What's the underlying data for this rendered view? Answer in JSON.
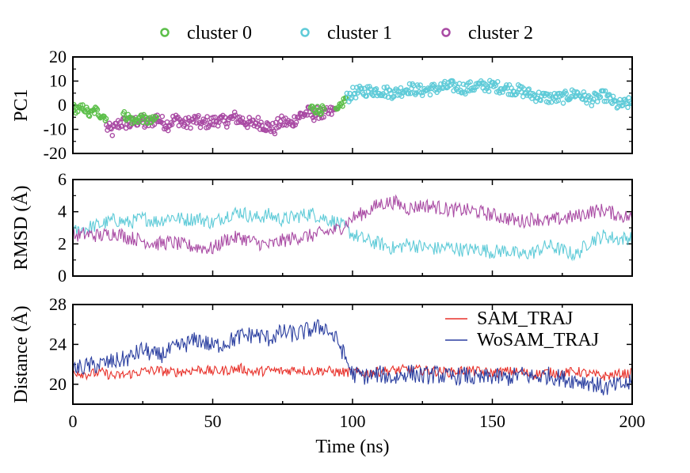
{
  "chart_data": [
    {
      "type": "scatter",
      "panel": "top",
      "ylabel": "PC1",
      "xlim": [
        0,
        200
      ],
      "ylim": [
        -20,
        20
      ],
      "yticks": [
        "20",
        "10",
        "0",
        "-10",
        "-20"
      ],
      "legend": {
        "placement": "top",
        "entries": [
          "cluster 0",
          "cluster 1",
          "cluster 2"
        ]
      },
      "series": [
        {
          "name": "cluster 0",
          "color": "#5cbf4a",
          "segments": [
            {
              "x": [
                0,
                2,
                4,
                6,
                8,
                10,
                12
              ],
              "y": [
                -1,
                -2,
                -1,
                -4,
                -2,
                -4,
                -5
              ]
            },
            {
              "x": [
                18,
                20,
                22,
                24,
                26,
                28,
                30
              ],
              "y": [
                -4,
                -5,
                -7,
                -5,
                -6,
                -7,
                -5
              ]
            },
            {
              "x": [
                85,
                88,
                90
              ],
              "y": [
                -1,
                -2,
                -2
              ]
            },
            {
              "x": [
                94,
                95,
                96,
                97,
                98
              ],
              "y": [
                -3,
                -2,
                0,
                2,
                3
              ]
            }
          ]
        },
        {
          "name": "cluster 1",
          "color": "#5fcbd8",
          "x": [
            98,
            100,
            105,
            110,
            115,
            120,
            125,
            130,
            135,
            140,
            145,
            150,
            155,
            160,
            165,
            170,
            175,
            180,
            185,
            190,
            195,
            200
          ],
          "y": [
            3,
            5,
            6,
            6,
            5,
            7,
            6,
            7,
            8,
            7,
            8,
            8,
            7,
            6,
            4,
            3,
            3,
            5,
            2,
            4,
            0,
            1
          ]
        },
        {
          "name": "cluster 2",
          "color": "#a94ba4",
          "x": [
            12,
            14,
            16,
            18,
            20,
            22,
            24,
            26,
            28,
            30,
            32,
            34,
            36,
            38,
            40,
            42,
            44,
            46,
            48,
            50,
            52,
            54,
            56,
            58,
            60,
            62,
            64,
            66,
            68,
            70,
            72,
            74,
            76,
            78,
            80,
            82,
            84,
            86,
            88,
            90,
            92,
            94
          ],
          "y": [
            -9,
            -11,
            -8,
            -7,
            -8,
            -7,
            -6,
            -8,
            -7,
            -5,
            -7,
            -8,
            -6,
            -6,
            -8,
            -7,
            -6,
            -8,
            -7,
            -7,
            -6,
            -7,
            -6,
            -5,
            -6,
            -7,
            -8,
            -7,
            -8,
            -9,
            -10,
            -7,
            -7,
            -8,
            -5,
            -4,
            -3,
            -4,
            -3,
            -4,
            -3,
            -2
          ]
        }
      ]
    },
    {
      "type": "line",
      "panel": "middle",
      "ylabel": "RMSD (Å)",
      "xlim": [
        0,
        200
      ],
      "ylim": [
        0,
        6
      ],
      "yticks": [
        "6",
        "4",
        "2",
        "0"
      ],
      "series": [
        {
          "color": "#5fcbd8",
          "x": [
            0,
            5,
            10,
            15,
            20,
            25,
            30,
            35,
            40,
            45,
            50,
            55,
            60,
            65,
            70,
            75,
            80,
            85,
            90,
            95,
            100,
            105,
            110,
            115,
            120,
            125,
            130,
            135,
            140,
            145,
            150,
            155,
            160,
            165,
            170,
            175,
            180,
            185,
            190,
            195,
            200
          ],
          "y": [
            2.7,
            3.0,
            3.2,
            3.5,
            3.3,
            3.6,
            3.4,
            3.7,
            3.5,
            3.6,
            3.3,
            3.8,
            4.0,
            3.6,
            3.8,
            3.5,
            3.7,
            3.9,
            3.6,
            3.3,
            2.6,
            2.2,
            2.0,
            1.7,
            2.0,
            1.8,
            1.7,
            1.8,
            1.6,
            1.7,
            1.5,
            1.6,
            1.3,
            1.5,
            1.9,
            1.6,
            1.3,
            2.2,
            2.5,
            2.3,
            2.4
          ]
        },
        {
          "color": "#a94ba4",
          "x": [
            0,
            5,
            10,
            15,
            20,
            25,
            30,
            35,
            40,
            45,
            50,
            55,
            60,
            65,
            70,
            75,
            80,
            85,
            90,
            95,
            100,
            105,
            110,
            115,
            120,
            125,
            130,
            135,
            140,
            145,
            150,
            155,
            160,
            165,
            170,
            175,
            180,
            185,
            190,
            195,
            200
          ],
          "y": [
            2.5,
            2.6,
            2.5,
            2.7,
            2.4,
            2.2,
            2.0,
            2.1,
            1.9,
            1.8,
            1.7,
            2.3,
            2.4,
            2.1,
            1.9,
            2.2,
            2.4,
            2.5,
            2.7,
            2.9,
            3.6,
            4.0,
            4.5,
            4.6,
            4.2,
            4.4,
            4.3,
            4.1,
            4.1,
            4.0,
            3.8,
            3.6,
            3.4,
            3.6,
            3.4,
            3.6,
            3.7,
            4.0,
            4.1,
            3.8,
            3.6
          ]
        }
      ]
    },
    {
      "type": "line",
      "panel": "bottom",
      "xlabel": "Time (ns)",
      "ylabel": "Distance (Å)",
      "xlim": [
        0,
        200
      ],
      "ylim": [
        18,
        28
      ],
      "xticks": [
        "0",
        "50",
        "100",
        "150",
        "200"
      ],
      "yticks": [
        "28",
        "24",
        "20"
      ],
      "legend": {
        "placement": "top-right",
        "entries": [
          "SAM_TRAJ",
          "WoSAM_TRAJ"
        ]
      },
      "series": [
        {
          "name": "SAM_TRAJ",
          "color": "#e8312a",
          "x": [
            0,
            5,
            10,
            15,
            20,
            25,
            30,
            35,
            40,
            45,
            50,
            55,
            60,
            65,
            70,
            75,
            80,
            85,
            90,
            95,
            100,
            105,
            110,
            115,
            120,
            125,
            130,
            135,
            140,
            145,
            150,
            155,
            160,
            165,
            170,
            175,
            180,
            185,
            190,
            195,
            200
          ],
          "y": [
            21.3,
            21.0,
            21.2,
            20.8,
            21.0,
            21.3,
            21.4,
            21.2,
            21.3,
            21.5,
            21.3,
            21.4,
            21.6,
            21.2,
            21.4,
            21.3,
            21.5,
            21.3,
            21.4,
            21.2,
            21.2,
            21.1,
            21.3,
            21.4,
            21.5,
            21.4,
            21.3,
            21.2,
            21.4,
            21.3,
            21.1,
            21.3,
            21.2,
            21.0,
            21.2,
            21.1,
            21.3,
            21.0,
            20.8,
            21.0,
            21.1
          ]
        },
        {
          "name": "WoSAM_TRAJ",
          "color": "#2b3fa0",
          "x": [
            0,
            5,
            10,
            15,
            20,
            25,
            30,
            35,
            40,
            45,
            50,
            55,
            60,
            65,
            70,
            75,
            80,
            85,
            90,
            95,
            100,
            105,
            110,
            115,
            120,
            125,
            130,
            135,
            140,
            145,
            150,
            155,
            160,
            165,
            170,
            175,
            180,
            185,
            190,
            195,
            200
          ],
          "y": [
            21.5,
            21.8,
            22.0,
            22.3,
            22.6,
            23.5,
            22.8,
            23.4,
            24.0,
            24.5,
            23.8,
            24.2,
            24.8,
            25.0,
            24.6,
            25.2,
            25.0,
            25.5,
            25.8,
            24.2,
            21.0,
            20.8,
            21.0,
            20.6,
            21.2,
            20.8,
            21.0,
            20.7,
            20.9,
            20.5,
            20.8,
            20.6,
            21.0,
            20.7,
            20.9,
            20.6,
            20.4,
            20.2,
            19.6,
            19.9,
            20.1
          ]
        }
      ]
    }
  ]
}
